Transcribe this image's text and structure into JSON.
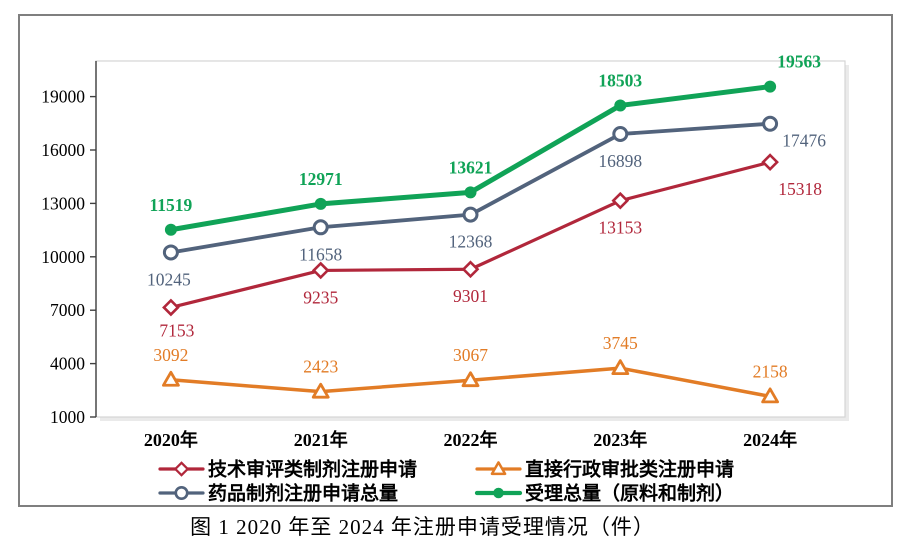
{
  "figure": {
    "caption": "图 1  2020 年至 2024 年注册申请受理情况（件）"
  },
  "chart_data": {
    "type": "line",
    "title": "图 1  2020 年至 2024 年注册申请受理情况（件）",
    "xlabel": "",
    "ylabel": "",
    "categories": [
      "2020年",
      "2021年",
      "2022年",
      "2023年",
      "2024年"
    ],
    "y_axis": {
      "min": 1000,
      "max": 21000,
      "ticks": [
        1000,
        4000,
        7000,
        10000,
        13000,
        16000,
        19000
      ]
    },
    "grid": false,
    "legend_position": "bottom",
    "series": [
      {
        "id": "tech-review-applications",
        "name": "技术审评类制剂注册申请",
        "color": "#B1273B",
        "marker": "diamond-hollow",
        "line_width": 3.2,
        "label_side": "below",
        "bold_labels": false,
        "values": [
          7153,
          9235,
          9301,
          13153,
          15318
        ],
        "label_offsets": {
          "0": [
            6,
            -4
          ],
          "4": [
            30,
            0
          ]
        }
      },
      {
        "id": "direct-admin-approval-applications",
        "name": "直接行政审批类注册申请",
        "color": "#E27C26",
        "marker": "triangle-hollow",
        "line_width": 3.5,
        "label_side": "above",
        "bold_labels": false,
        "values": [
          3092,
          2423,
          3067,
          3745,
          2158
        ],
        "label_offsets": {}
      },
      {
        "id": "drug-preparation-applications-total",
        "name": "药品制剂注册申请总量",
        "color": "#52637C",
        "marker": "circle-hollow",
        "line_width": 3.8,
        "label_side": "below",
        "bold_labels": false,
        "values": [
          10245,
          11658,
          12368,
          16898,
          17476
        ],
        "label_offsets": {
          "0": [
            -2,
            0
          ],
          "4": [
            34,
            -10
          ]
        }
      },
      {
        "id": "total-accepted",
        "name": "受理总量（原料和制剂）",
        "color": "#10A357",
        "marker": "circle-filled",
        "line_width": 5,
        "label_side": "above",
        "bold_labels": true,
        "values": [
          11519,
          12971,
          13621,
          18503,
          19563
        ],
        "label_offsets": {
          "4": [
            29,
            0
          ]
        }
      }
    ]
  }
}
